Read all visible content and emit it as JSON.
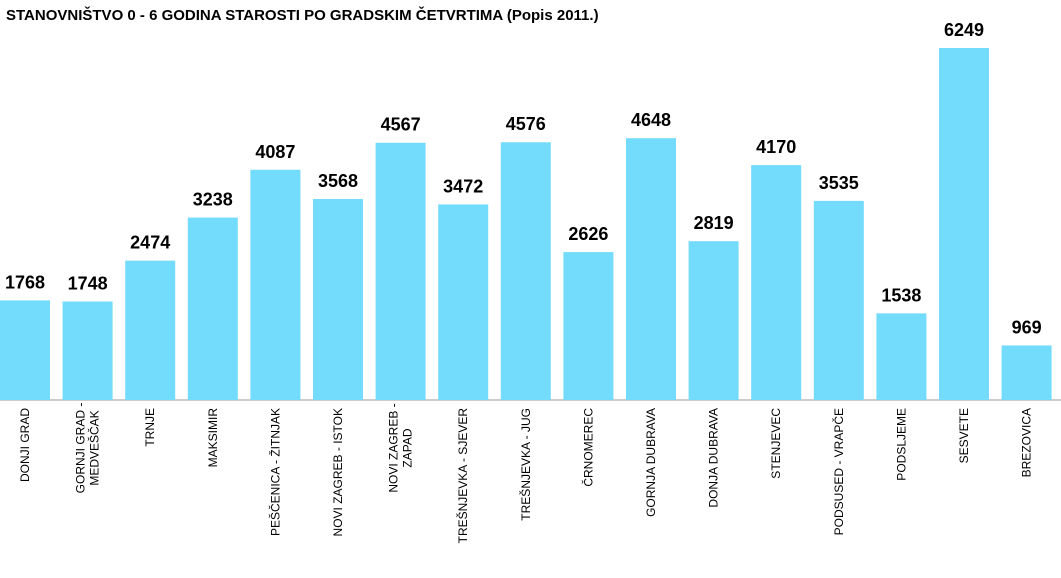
{
  "chart_data": {
    "type": "bar",
    "title": "STANOVNIŠTVO 0 - 6 GODINA STAROSTI PO GRADSKIM ČETVRTIMA (Popis 2011.)",
    "categories": [
      [
        "DONJI GRAD"
      ],
      [
        "GORNJI GRAD -",
        "MEDVEŠČAK"
      ],
      [
        "TRNJE"
      ],
      [
        "MAKSIMIR"
      ],
      [
        "PEŠČENICA - ŽITNJAK"
      ],
      [
        "NOVI ZAGREB - ISTOK"
      ],
      [
        "NOVI ZAGREB -",
        "ZAPAD"
      ],
      [
        "TREŠNJEVKA - SJEVER"
      ],
      [
        "TREŠNJEVKA - JUG"
      ],
      [
        "ČRNOMEREC"
      ],
      [
        "GORNJA DUBRAVA"
      ],
      [
        "DONJA DUBRAVA"
      ],
      [
        "STENJEVEC"
      ],
      [
        "PODSUSED - VRAPČE"
      ],
      [
        "PODSLJEME"
      ],
      [
        "SESVETE"
      ],
      [
        "BREZOVICA"
      ]
    ],
    "values": [
      1768,
      1748,
      2474,
      3238,
      4087,
      3568,
      4567,
      3472,
      4576,
      2626,
      4648,
      2819,
      4170,
      3535,
      1538,
      6249,
      969
    ],
    "color": "#73dbfb"
  }
}
